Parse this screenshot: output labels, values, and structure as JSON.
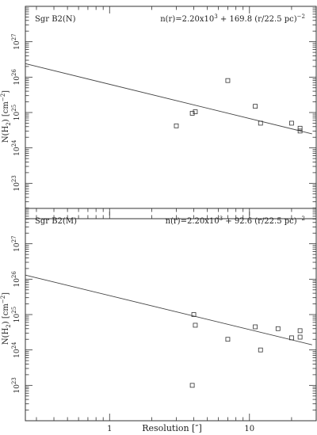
{
  "figure": {
    "xlabel": "Resolution  [″]"
  },
  "chart_data": [
    {
      "type": "scatter",
      "name": "Sgr B2(N)",
      "title": "Sgr B2(N)",
      "equation": "n(r)=2.20x10^3 + 169.8 (r/22.5 pc)^-2",
      "eq_main": "n(r)=2.20x10",
      "eq_exp1": "3",
      "eq_rest": " +  169.8  (r/22.5 pc)",
      "eq_exp2": "−2",
      "xscale": "log",
      "yscale": "log",
      "xlim": [
        0.25,
        30
      ],
      "ylim": [
        1e+22,
        1e+28
      ],
      "ylabel": "N(H2) [cm^-2]",
      "x_tick_labels": [
        "1",
        "10"
      ],
      "y_tick_labels": [
        "27",
        "26",
        "25",
        "24",
        "23"
      ],
      "points": [
        {
          "x": 3.0,
          "y": 4.2e+24
        },
        {
          "x": 3.9,
          "y": 9.5e+24
        },
        {
          "x": 4.1,
          "y": 1.05e+25
        },
        {
          "x": 7.0,
          "y": 8e+25
        },
        {
          "x": 11.0,
          "y": 1.5e+25
        },
        {
          "x": 12.0,
          "y": 5e+24
        },
        {
          "x": 20.0,
          "y": 5e+24
        },
        {
          "x": 23.0,
          "y": 3.6e+24
        },
        {
          "x": 23.0,
          "y": 3e+24
        }
      ],
      "fit_line": [
        {
          "x": 0.25,
          "y": 2.4e+26
        },
        {
          "x": 28,
          "y": 2.5e+24
        }
      ]
    },
    {
      "type": "scatter",
      "name": "Sgr B2(M)",
      "title": "Sgr B2(M)",
      "equation": "n(r)=2.20x10^3 + 92.6 (r/22.5 pc)^-2",
      "eq_main": "n(r)=2.20x10",
      "eq_exp1": "3",
      "eq_rest": " +  92.6  (r/22.5 pc)",
      "eq_exp2": "−2",
      "xscale": "log",
      "yscale": "log",
      "xlim": [
        0.25,
        30
      ],
      "ylim": [
        1e+22,
        1e+28
      ],
      "ylabel": "N(H2) [cm^-2]",
      "x_tick_labels": [
        "1",
        "10"
      ],
      "y_tick_labels": [
        "27",
        "26",
        "25",
        "24",
        "23"
      ],
      "points": [
        {
          "x": 3.9,
          "y": 1e+23
        },
        {
          "x": 4.0,
          "y": 1e+25
        },
        {
          "x": 4.1,
          "y": 5e+24
        },
        {
          "x": 7.0,
          "y": 2e+24
        },
        {
          "x": 11.0,
          "y": 4.5e+24
        },
        {
          "x": 12.0,
          "y": 1e+24
        },
        {
          "x": 16.0,
          "y": 4e+24
        },
        {
          "x": 20.0,
          "y": 2.2e+24
        },
        {
          "x": 23.0,
          "y": 3.5e+24
        },
        {
          "x": 23.0,
          "y": 2.3e+24
        }
      ],
      "fit_line": [
        {
          "x": 0.25,
          "y": 1.3e+26
        },
        {
          "x": 28,
          "y": 1.4e+24
        }
      ]
    }
  ]
}
